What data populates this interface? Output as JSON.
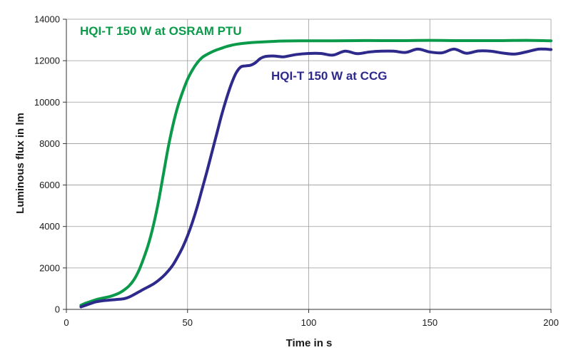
{
  "chart_data": {
    "type": "line",
    "title": "",
    "xlabel": "Time in s",
    "ylabel": "Luminous flux in lm",
    "xlim": [
      0,
      200
    ],
    "ylim": [
      0,
      14000
    ],
    "xticks": [
      0,
      50,
      100,
      150,
      200
    ],
    "yticks": [
      0,
      2000,
      4000,
      6000,
      8000,
      10000,
      12000,
      14000
    ],
    "grid": true,
    "series": [
      {
        "name": "HQI-T 150 W at OSRAM PTU",
        "color": "#0a9a4a",
        "x": [
          6,
          8,
          10,
          12,
          14,
          16,
          18,
          20,
          22,
          24,
          26,
          28,
          30,
          32,
          34,
          36,
          38,
          40,
          42,
          44,
          46,
          48,
          50,
          52,
          54,
          56,
          58,
          60,
          62,
          64,
          66,
          68,
          70,
          75,
          80,
          85,
          90,
          100,
          110,
          120,
          130,
          140,
          150,
          160,
          170,
          180,
          190,
          200
        ],
        "y": [
          200,
          300,
          380,
          460,
          520,
          570,
          620,
          700,
          800,
          950,
          1150,
          1450,
          1900,
          2500,
          3200,
          4100,
          5200,
          6500,
          7800,
          8900,
          9800,
          10500,
          11100,
          11550,
          11900,
          12150,
          12300,
          12420,
          12520,
          12600,
          12680,
          12740,
          12790,
          12860,
          12900,
          12930,
          12950,
          12960,
          12960,
          12970,
          12970,
          12970,
          12980,
          12970,
          12970,
          12970,
          12980,
          12960
        ]
      },
      {
        "name": "HQI-T 150 W at CCG",
        "color": "#2e2a8c",
        "x": [
          6,
          8,
          10,
          12,
          14,
          16,
          18,
          20,
          22,
          24,
          26,
          28,
          30,
          32,
          34,
          36,
          38,
          40,
          42,
          44,
          46,
          48,
          50,
          52,
          54,
          56,
          58,
          60,
          62,
          64,
          66,
          68,
          70,
          72,
          74,
          76,
          78,
          80,
          82,
          85,
          88,
          90,
          95,
          100,
          105,
          110,
          115,
          120,
          125,
          130,
          135,
          140,
          145,
          150,
          155,
          160,
          165,
          170,
          175,
          180,
          185,
          190,
          195,
          200
        ],
        "y": [
          120,
          200,
          280,
          360,
          400,
          430,
          450,
          470,
          490,
          520,
          600,
          720,
          850,
          980,
          1100,
          1230,
          1400,
          1600,
          1850,
          2150,
          2550,
          3000,
          3550,
          4200,
          4950,
          5800,
          6650,
          7550,
          8450,
          9350,
          10150,
          10850,
          11400,
          11700,
          11750,
          11780,
          11900,
          12100,
          12200,
          12230,
          12200,
          12190,
          12300,
          12350,
          12350,
          12270,
          12460,
          12340,
          12420,
          12460,
          12460,
          12400,
          12560,
          12420,
          12380,
          12560,
          12360,
          12470,
          12460,
          12370,
          12320,
          12430,
          12560,
          12540
        ]
      }
    ],
    "annotations": [
      {
        "text": "HQI-T 150 W at OSRAM PTU",
        "series": 0
      },
      {
        "text": "HQI-T 150 W at CCG",
        "series": 1
      }
    ]
  }
}
